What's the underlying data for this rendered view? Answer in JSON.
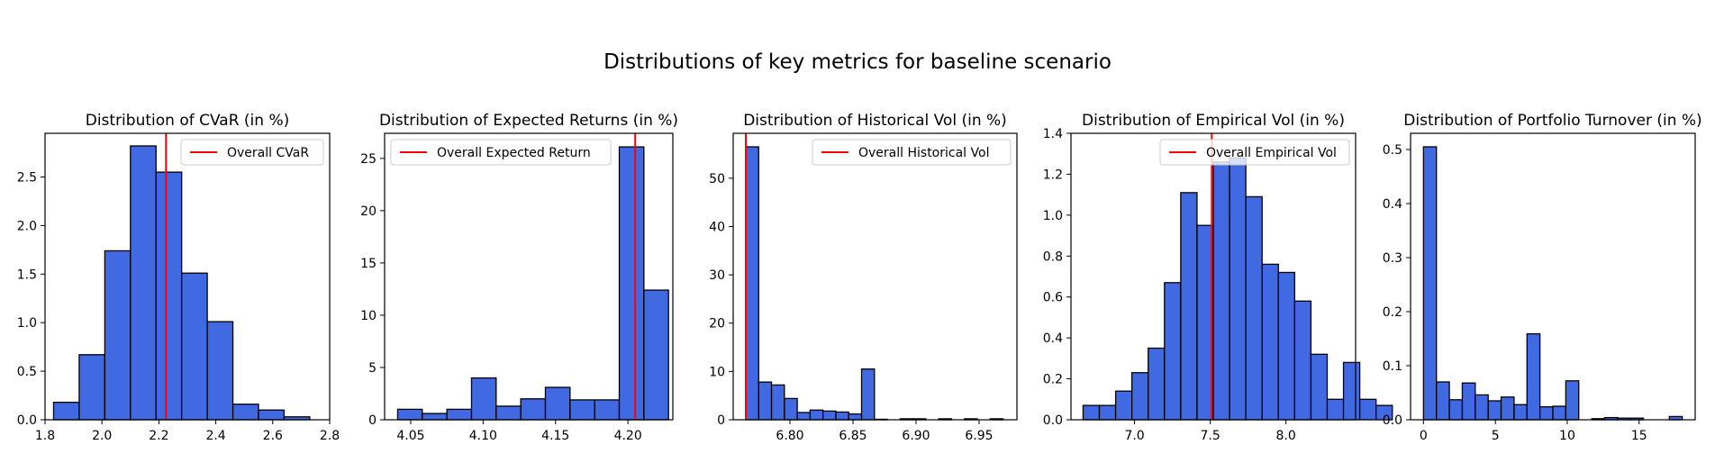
{
  "figure": {
    "suptitle": "Distributions of key metrics for baseline  scenario",
    "bar_color": "#4169E1",
    "edge_color": "#000000",
    "line_color": "#FF0000"
  },
  "chart_data": [
    {
      "type": "bar",
      "subtype": "histogram",
      "title": "Distribution of CVaR (in %)",
      "xlabel": "",
      "ylabel": "",
      "xlim": [
        1.8,
        2.8
      ],
      "ylim": [
        0,
        2.95
      ],
      "xticks": [
        1.8,
        2.0,
        2.2,
        2.4,
        2.6,
        2.8
      ],
      "xtick_labels": [
        "1.8",
        "2.0",
        "2.2",
        "2.4",
        "2.6",
        "2.8"
      ],
      "yticks": [
        0,
        0.5,
        1.0,
        1.5,
        2.0,
        2.5
      ],
      "ytick_labels": [
        "0.0",
        "0.5",
        "1.0",
        "1.5",
        "2.0",
        "2.5"
      ],
      "bins": [
        [
          1.83,
          1.92,
          0.18
        ],
        [
          1.92,
          2.01,
          0.67
        ],
        [
          2.01,
          2.1,
          1.74
        ],
        [
          2.1,
          2.19,
          2.82
        ],
        [
          2.19,
          2.28,
          2.55
        ],
        [
          2.28,
          2.37,
          1.51
        ],
        [
          2.37,
          2.46,
          1.01
        ],
        [
          2.46,
          2.55,
          0.16
        ],
        [
          2.55,
          2.64,
          0.1
        ],
        [
          2.64,
          2.73,
          0.03
        ]
      ],
      "vline": 2.225,
      "legend": {
        "label": "Overall CVaR",
        "loc": "upper right"
      },
      "grid": false
    },
    {
      "type": "bar",
      "subtype": "histogram",
      "title": "Distribution of Expected Returns (in %)",
      "xlabel": "",
      "ylabel": "",
      "xlim": [
        4.032,
        4.231
      ],
      "ylim": [
        0,
        27.4
      ],
      "xticks": [
        4.05,
        4.1,
        4.15,
        4.2
      ],
      "xtick_labels": [
        "4.05",
        "4.10",
        "4.15",
        "4.20"
      ],
      "yticks": [
        0,
        5,
        10,
        15,
        20,
        25
      ],
      "ytick_labels": [
        "0",
        "5",
        "10",
        "15",
        "20",
        "25"
      ],
      "bins": [
        [
          4.041,
          4.058,
          1.0
        ],
        [
          4.058,
          4.075,
          0.6
        ],
        [
          4.075,
          4.092,
          1.0
        ],
        [
          4.092,
          4.109,
          4.0
        ],
        [
          4.109,
          4.126,
          1.3
        ],
        [
          4.126,
          4.143,
          2.0
        ],
        [
          4.143,
          4.16,
          3.1
        ],
        [
          4.16,
          4.177,
          1.9
        ],
        [
          4.177,
          4.194,
          1.9
        ],
        [
          4.194,
          4.211,
          26.1
        ],
        [
          4.211,
          4.228,
          12.4
        ]
      ],
      "vline": 4.205,
      "legend": {
        "label": "Overall Expected Return",
        "loc": "upper left"
      },
      "grid": false
    },
    {
      "type": "bar",
      "subtype": "histogram",
      "title": "Distribution of Historical Vol (in %)",
      "xlabel": "",
      "ylabel": "",
      "xlim": [
        6.755,
        6.98
      ],
      "ylim": [
        0,
        59.3
      ],
      "xticks": [
        6.8,
        6.85,
        6.9,
        6.95
      ],
      "xtick_labels": [
        "6.80",
        "6.85",
        "6.90",
        "6.95"
      ],
      "yticks": [
        0,
        10,
        20,
        30,
        40,
        50
      ],
      "ytick_labels": [
        "0",
        "10",
        "20",
        "30",
        "40",
        "50"
      ],
      "bins": [
        [
          6.765,
          6.7752,
          56.5
        ],
        [
          6.7752,
          6.7854,
          7.8
        ],
        [
          6.7854,
          6.7956,
          7.2
        ],
        [
          6.7956,
          6.8058,
          4.4
        ],
        [
          6.8058,
          6.816,
          1.5
        ],
        [
          6.816,
          6.8262,
          2.0
        ],
        [
          6.8262,
          6.8364,
          1.8
        ],
        [
          6.8364,
          6.8466,
          1.6
        ],
        [
          6.8466,
          6.8568,
          1.2
        ],
        [
          6.8568,
          6.867,
          10.5
        ],
        [
          6.867,
          6.8772,
          0.1
        ],
        [
          6.8772,
          6.8874,
          0
        ],
        [
          6.8874,
          6.8976,
          0.2
        ],
        [
          6.8976,
          6.9078,
          0.2
        ],
        [
          6.9078,
          6.918,
          0
        ],
        [
          6.918,
          6.9282,
          0.2
        ],
        [
          6.9282,
          6.9384,
          0
        ],
        [
          6.9384,
          6.9486,
          0.2
        ],
        [
          6.9486,
          6.9588,
          0
        ],
        [
          6.9588,
          6.969,
          0.2
        ]
      ],
      "vline": 6.765,
      "legend": {
        "label": "Overall Historical Vol",
        "loc": "upper right"
      },
      "grid": false
    },
    {
      "type": "bar",
      "subtype": "histogram",
      "title": "Distribution of Empirical Vol (in %)",
      "xlabel": "",
      "ylabel": "",
      "xlim": [
        6.58,
        8.46
      ],
      "ylim": [
        0,
        1.4
      ],
      "xticks": [
        7.0,
        7.5,
        8.0
      ],
      "xtick_labels": [
        "7.0",
        "7.5",
        "8.0"
      ],
      "yticks": [
        0,
        0.2,
        0.4,
        0.6,
        0.8,
        1.0,
        1.2,
        1.4
      ],
      "ytick_labels": [
        "0.0",
        "0.2",
        "0.4",
        "0.6",
        "0.8",
        "1.0",
        "1.2",
        "1.4"
      ],
      "bins": [
        [
          6.66,
          6.7675,
          0.07
        ],
        [
          6.7675,
          6.875,
          0.07
        ],
        [
          6.875,
          6.9825,
          0.14
        ],
        [
          6.9825,
          7.09,
          0.23
        ],
        [
          7.09,
          7.1975,
          0.35
        ],
        [
          7.1975,
          7.305,
          0.67
        ],
        [
          7.305,
          7.4125,
          1.11
        ],
        [
          7.4125,
          7.52,
          0.95
        ],
        [
          7.52,
          7.6275,
          1.26
        ],
        [
          7.6275,
          7.735,
          1.28
        ],
        [
          7.735,
          7.8425,
          1.09
        ],
        [
          7.8425,
          7.95,
          0.76
        ],
        [
          7.95,
          8.0575,
          0.72
        ],
        [
          8.0575,
          8.165,
          0.58
        ],
        [
          8.165,
          8.2725,
          0.32
        ],
        [
          8.2725,
          8.38,
          0.1
        ],
        [
          8.38,
          8.4875,
          0.28
        ],
        [
          8.4875,
          8.595,
          0.1
        ],
        [
          8.595,
          8.7025,
          0.07
        ]
      ],
      "vline": 7.51,
      "legend": {
        "label": "Overall Empirical Vol",
        "loc": "upper right"
      },
      "grid": false
    },
    {
      "type": "bar",
      "subtype": "histogram",
      "title": "Distribution of Portfolio Turnover (in %)",
      "xlabel": "",
      "ylabel": "",
      "xlim": [
        -0.9,
        18.9
      ],
      "ylim": [
        0,
        0.53
      ],
      "xticks": [
        0,
        5,
        10,
        15
      ],
      "xtick_labels": [
        "0",
        "5",
        "10",
        "15"
      ],
      "yticks": [
        0,
        0.1,
        0.2,
        0.3,
        0.4,
        0.5
      ],
      "ytick_labels": [
        "0.0",
        "0.1",
        "0.2",
        "0.3",
        "0.4",
        "0.5"
      ],
      "bins": [
        [
          0,
          0.9,
          0.505
        ],
        [
          0.9,
          1.8,
          0.07
        ],
        [
          1.8,
          2.7,
          0.037
        ],
        [
          2.7,
          3.6,
          0.068
        ],
        [
          3.6,
          4.5,
          0.046
        ],
        [
          4.5,
          5.4,
          0.035
        ],
        [
          5.4,
          6.3,
          0.042
        ],
        [
          6.3,
          7.2,
          0.028
        ],
        [
          7.2,
          8.1,
          0.159
        ],
        [
          8.1,
          9.0,
          0.024
        ],
        [
          9.0,
          9.9,
          0.025
        ],
        [
          9.9,
          10.8,
          0.072
        ],
        [
          10.8,
          11.7,
          0
        ],
        [
          11.7,
          12.6,
          0.002
        ],
        [
          12.6,
          13.5,
          0.004
        ],
        [
          13.5,
          14.4,
          0.003
        ],
        [
          14.4,
          15.3,
          0.003
        ],
        [
          15.3,
          16.2,
          0
        ],
        [
          16.2,
          17.1,
          0
        ],
        [
          17.1,
          18.0,
          0.006
        ]
      ],
      "legend": null,
      "grid": false
    }
  ]
}
